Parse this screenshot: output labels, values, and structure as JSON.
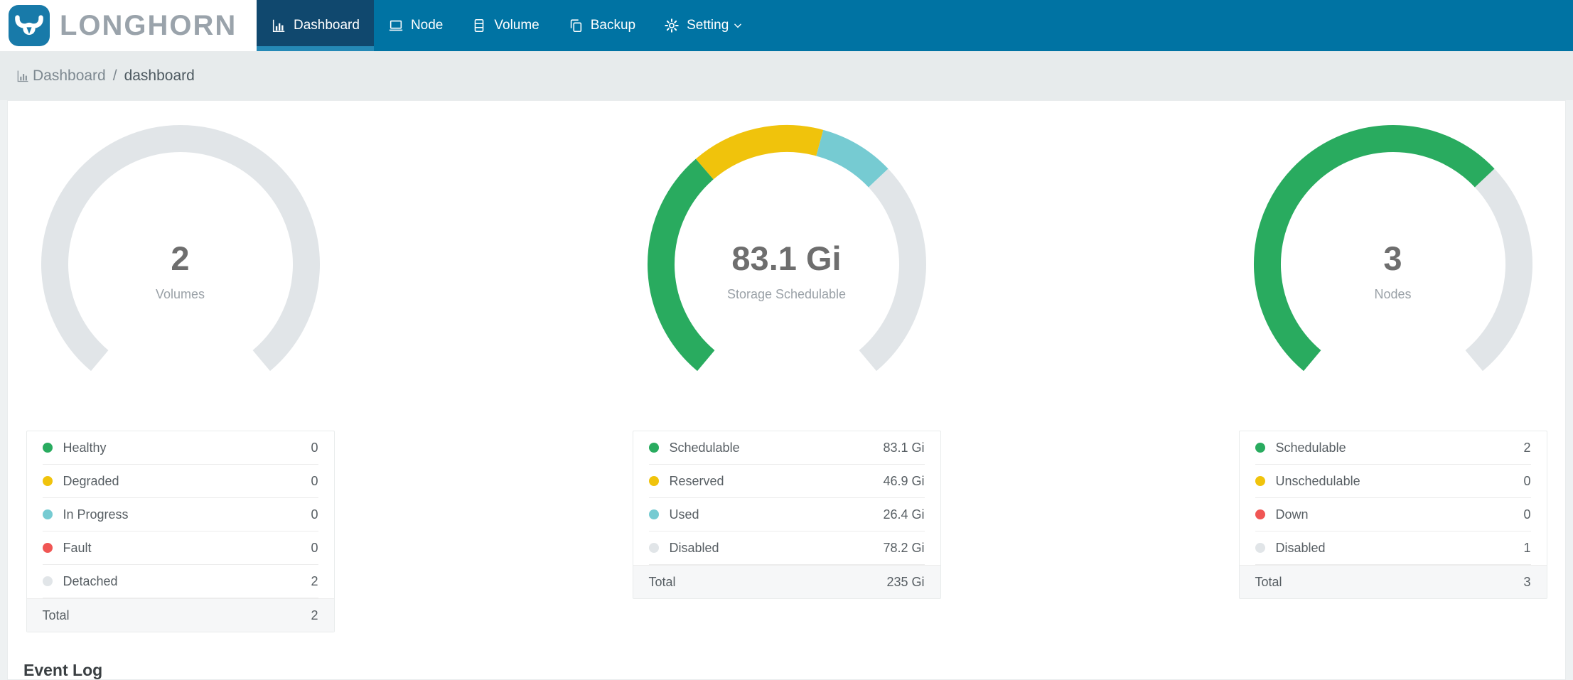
{
  "brand": {
    "name": "LONGHORN",
    "logo_icon": "bull-icon"
  },
  "colors": {
    "nav_bg": "#0073a3",
    "nav_active_bg": "#10486e",
    "nav_active_strip": "#2589b6",
    "logo_blue": "#187aa9",
    "healthy_green": "#29ab5f",
    "warning_yellow": "#f0c30c",
    "progress_teal": "#76cbd2",
    "fault_red": "#f05654",
    "neutral_gray": "#e1e5e8"
  },
  "nav": {
    "items": [
      {
        "label": "Dashboard",
        "icon": "bar-chart-icon",
        "active": true,
        "has_dropdown": false
      },
      {
        "label": "Node",
        "icon": "laptop-icon",
        "active": false,
        "has_dropdown": false
      },
      {
        "label": "Volume",
        "icon": "server-icon",
        "active": false,
        "has_dropdown": false
      },
      {
        "label": "Backup",
        "icon": "copy-icon",
        "active": false,
        "has_dropdown": false
      },
      {
        "label": "Setting",
        "icon": "gear-icon",
        "active": false,
        "has_dropdown": true
      }
    ]
  },
  "breadcrumb": {
    "icon": "bar-chart-icon",
    "section": "Dashboard",
    "separator": "/",
    "page": "dashboard"
  },
  "chart_data": [
    {
      "type": "gauge",
      "name": "volumes",
      "center_value": "2",
      "center_label": "Volumes",
      "arc": {
        "start_angle": 230,
        "sweep": 280,
        "stroke_width": 38,
        "radius": 177
      },
      "segments": [
        {
          "label": "Healthy",
          "value": 0,
          "display": "0",
          "color": "#29ab5f"
        },
        {
          "label": "Degraded",
          "value": 0,
          "display": "0",
          "color": "#f0c30c"
        },
        {
          "label": "In Progress",
          "value": 0,
          "display": "0",
          "color": "#76cbd2"
        },
        {
          "label": "Fault",
          "value": 0,
          "display": "0",
          "color": "#f05654"
        },
        {
          "label": "Detached",
          "value": 2,
          "display": "2",
          "color": "#e1e5e8"
        }
      ],
      "total": {
        "label": "Total",
        "display": "2"
      }
    },
    {
      "type": "gauge",
      "name": "storage-schedulable",
      "center_value": "83.1 Gi",
      "center_label": "Storage Schedulable",
      "arc": {
        "start_angle": 230,
        "sweep": 280,
        "stroke_width": 38,
        "radius": 177
      },
      "segments": [
        {
          "label": "Schedulable",
          "value": 83.1,
          "display": "83.1 Gi",
          "color": "#29ab5f"
        },
        {
          "label": "Reserved",
          "value": 46.9,
          "display": "46.9 Gi",
          "color": "#f0c30c"
        },
        {
          "label": "Used",
          "value": 26.4,
          "display": "26.4 Gi",
          "color": "#76cbd2"
        },
        {
          "label": "Disabled",
          "value": 78.2,
          "display": "78.2 Gi",
          "color": "#e1e5e8"
        }
      ],
      "total": {
        "label": "Total",
        "display": "235 Gi"
      }
    },
    {
      "type": "gauge",
      "name": "nodes",
      "center_value": "3",
      "center_label": "Nodes",
      "arc": {
        "start_angle": 230,
        "sweep": 280,
        "stroke_width": 38,
        "radius": 177
      },
      "segments": [
        {
          "label": "Schedulable",
          "value": 2,
          "display": "2",
          "color": "#29ab5f"
        },
        {
          "label": "Unschedulable",
          "value": 0,
          "display": "0",
          "color": "#f0c30c"
        },
        {
          "label": "Down",
          "value": 0,
          "display": "0",
          "color": "#f05654"
        },
        {
          "label": "Disabled",
          "value": 1,
          "display": "1",
          "color": "#e1e5e8"
        }
      ],
      "total": {
        "label": "Total",
        "display": "3"
      }
    }
  ],
  "event_log": {
    "title": "Event Log"
  }
}
